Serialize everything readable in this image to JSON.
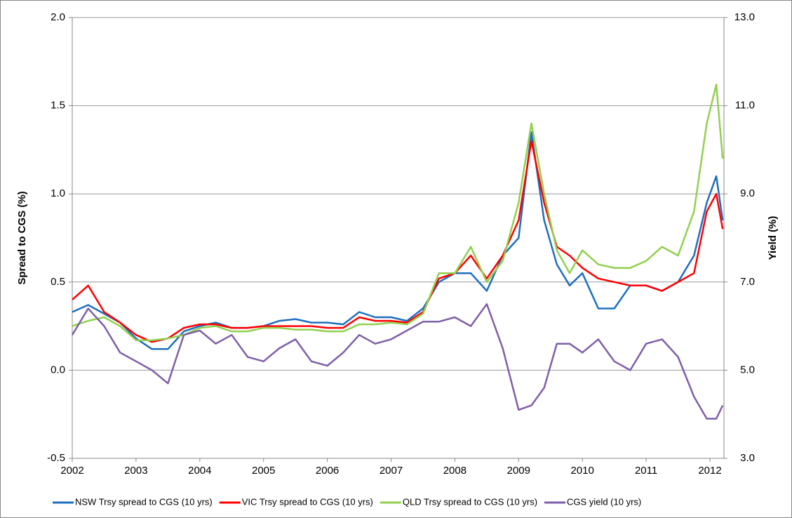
{
  "chart_data": {
    "type": "line",
    "y_label": "Spread to CGS (%)",
    "y2_label": "Yield (%)",
    "x": [
      2002.0,
      2002.25,
      2002.5,
      2002.75,
      2003.0,
      2003.25,
      2003.5,
      2003.75,
      2004.0,
      2004.25,
      2004.5,
      2004.75,
      2005.0,
      2005.25,
      2005.5,
      2005.75,
      2006.0,
      2006.25,
      2006.5,
      2006.75,
      2007.0,
      2007.25,
      2007.5,
      2007.75,
      2008.0,
      2008.25,
      2008.5,
      2008.75,
      2009.0,
      2009.2,
      2009.4,
      2009.6,
      2009.8,
      2010.0,
      2010.25,
      2010.5,
      2010.75,
      2011.0,
      2011.25,
      2011.5,
      2011.75,
      2011.95,
      2012.1,
      2012.2
    ],
    "series": [
      {
        "name": "NSW Trsy spread to CGS (10 yrs)",
        "color": "#1f6fbf",
        "values": [
          0.33,
          0.37,
          0.32,
          0.27,
          0.18,
          0.12,
          0.12,
          0.22,
          0.25,
          0.27,
          0.24,
          0.24,
          0.25,
          0.28,
          0.29,
          0.27,
          0.27,
          0.26,
          0.33,
          0.3,
          0.3,
          0.28,
          0.35,
          0.5,
          0.55,
          0.55,
          0.45,
          0.65,
          0.75,
          1.35,
          0.85,
          0.6,
          0.48,
          0.55,
          0.35,
          0.35,
          0.48,
          0.48,
          0.45,
          0.5,
          0.65,
          0.95,
          1.1,
          0.85
        ]
      },
      {
        "name": "VIC Trsy spread to CGS (10 yrs)",
        "color": "#ff0000",
        "values": [
          0.4,
          0.48,
          0.33,
          0.27,
          0.2,
          0.16,
          0.18,
          0.24,
          0.26,
          0.26,
          0.24,
          0.24,
          0.25,
          0.25,
          0.25,
          0.25,
          0.24,
          0.24,
          0.3,
          0.28,
          0.28,
          0.27,
          0.33,
          0.52,
          0.55,
          0.65,
          0.52,
          0.65,
          0.85,
          1.3,
          0.95,
          0.7,
          0.65,
          0.58,
          0.52,
          0.5,
          0.48,
          0.48,
          0.45,
          0.5,
          0.55,
          0.9,
          1.0,
          0.8
        ]
      },
      {
        "name": "QLD Trsy spread to CGS (10 yrs)",
        "color": "#92d050",
        "values": [
          0.25,
          0.28,
          0.3,
          0.25,
          0.17,
          0.17,
          0.18,
          0.2,
          0.24,
          0.25,
          0.22,
          0.22,
          0.24,
          0.24,
          0.23,
          0.23,
          0.22,
          0.22,
          0.26,
          0.26,
          0.27,
          0.26,
          0.32,
          0.55,
          0.55,
          0.7,
          0.5,
          0.62,
          0.95,
          1.4,
          1.0,
          0.68,
          0.55,
          0.68,
          0.6,
          0.58,
          0.58,
          0.62,
          0.7,
          0.65,
          0.9,
          1.4,
          1.62,
          1.2
        ]
      },
      {
        "name": "CGS yield (10 yrs)",
        "color": "#7f5fa8",
        "axis": "y2",
        "values": [
          5.8,
          6.4,
          6.0,
          5.4,
          5.2,
          5.0,
          4.7,
          5.8,
          5.9,
          5.6,
          5.8,
          5.3,
          5.2,
          5.5,
          5.7,
          5.2,
          5.1,
          5.4,
          5.8,
          5.6,
          5.7,
          5.9,
          6.1,
          6.1,
          6.2,
          6.0,
          6.5,
          5.5,
          4.1,
          4.2,
          4.6,
          5.6,
          5.6,
          5.4,
          5.7,
          5.2,
          5.0,
          5.6,
          5.7,
          5.3,
          4.4,
          3.9,
          3.9,
          4.2
        ]
      }
    ],
    "xlim": [
      2002,
      2012.22
    ],
    "xticks": [
      2002,
      2003,
      2004,
      2005,
      2006,
      2007,
      2008,
      2009,
      2010,
      2011,
      2012
    ],
    "ylim": [
      -0.5,
      2.0
    ],
    "yticks": [
      -0.5,
      {
        "value": 0,
        "label": "0.0"
      },
      0.5,
      {
        "value": 1,
        "label": "1.0"
      },
      1.5,
      {
        "value": 2,
        "label": "2.0"
      }
    ],
    "y2lim": [
      3,
      13
    ],
    "y2ticks": [
      {
        "value": 3,
        "label": "3.0"
      },
      {
        "value": 5,
        "label": "5.0"
      },
      {
        "value": 7,
        "label": "7.0"
      },
      {
        "value": 9,
        "label": "9.0"
      },
      {
        "value": 11,
        "label": "11.0"
      },
      {
        "value": 13,
        "label": "13.0"
      }
    ],
    "grid": true,
    "legend": "bottom"
  }
}
